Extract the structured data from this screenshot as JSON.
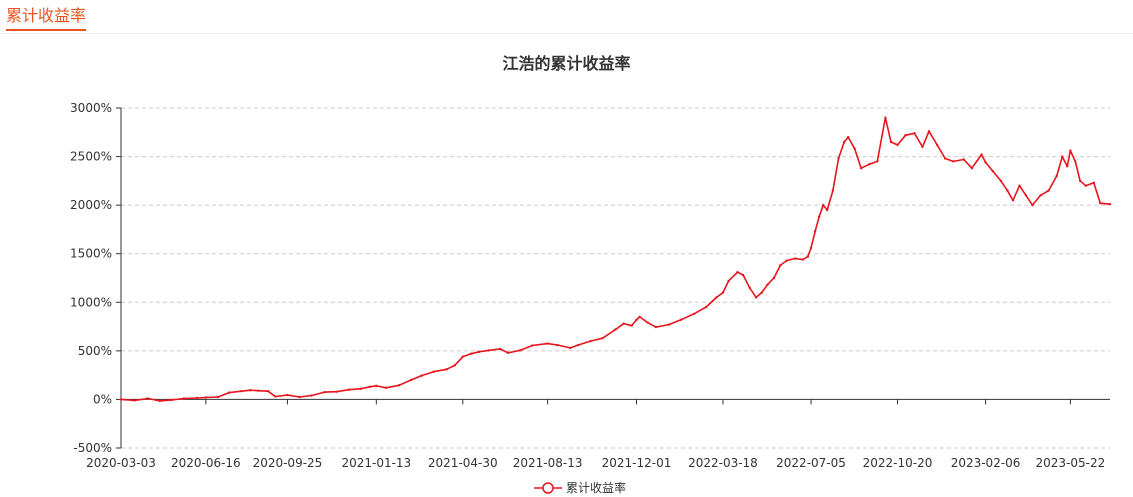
{
  "section": {
    "title": "累计收益率"
  },
  "chart_data": {
    "type": "line",
    "title": "江浩的累计收益率",
    "xlabel": "",
    "ylabel": "",
    "ylim": [
      -500,
      3000
    ],
    "y_ticks": [
      -500,
      0,
      500,
      1000,
      1500,
      2000,
      2500,
      3000
    ],
    "y_tick_labels": [
      "-500%",
      "0%",
      "500%",
      "1000%",
      "1500%",
      "2000%",
      "2500%",
      "3000%"
    ],
    "x_tick_labels": [
      "2020-03-03",
      "2020-06-16",
      "2020-09-25",
      "2021-01-13",
      "2021-04-30",
      "2021-08-13",
      "2021-12-01",
      "2022-03-18",
      "2022-07-05",
      "2022-10-20",
      "2023-02-06",
      "2023-05-22"
    ],
    "x_start": "2020-03-03",
    "x_end": "2023-07-10",
    "grid": true,
    "legend_position": "bottom-center",
    "series": [
      {
        "name": "累计收益率",
        "color": "#e8141e",
        "points": [
          [
            "2020-03-03",
            0
          ],
          [
            "2020-03-20",
            -10
          ],
          [
            "2020-04-05",
            10
          ],
          [
            "2020-04-20",
            -15
          ],
          [
            "2020-05-05",
            -5
          ],
          [
            "2020-05-20",
            10
          ],
          [
            "2020-06-05",
            15
          ],
          [
            "2020-06-16",
            20
          ],
          [
            "2020-07-01",
            25
          ],
          [
            "2020-07-15",
            70
          ],
          [
            "2020-07-30",
            85
          ],
          [
            "2020-08-10",
            95
          ],
          [
            "2020-08-20",
            90
          ],
          [
            "2020-09-01",
            85
          ],
          [
            "2020-09-10",
            30
          ],
          [
            "2020-09-25",
            45
          ],
          [
            "2020-10-10",
            25
          ],
          [
            "2020-10-25",
            40
          ],
          [
            "2020-11-10",
            75
          ],
          [
            "2020-11-25",
            80
          ],
          [
            "2020-12-10",
            100
          ],
          [
            "2020-12-25",
            110
          ],
          [
            "2021-01-05",
            130
          ],
          [
            "2021-01-13",
            140
          ],
          [
            "2021-01-25",
            120
          ],
          [
            "2021-02-10",
            145
          ],
          [
            "2021-02-25",
            200
          ],
          [
            "2021-03-10",
            245
          ],
          [
            "2021-03-25",
            285
          ],
          [
            "2021-04-10",
            310
          ],
          [
            "2021-04-20",
            350
          ],
          [
            "2021-04-30",
            440
          ],
          [
            "2021-05-10",
            470
          ],
          [
            "2021-05-20",
            490
          ],
          [
            "2021-06-01",
            505
          ],
          [
            "2021-06-15",
            520
          ],
          [
            "2021-06-25",
            480
          ],
          [
            "2021-07-10",
            505
          ],
          [
            "2021-07-25",
            555
          ],
          [
            "2021-08-13",
            575
          ],
          [
            "2021-08-25",
            560
          ],
          [
            "2021-09-10",
            530
          ],
          [
            "2021-09-20",
            560
          ],
          [
            "2021-10-05",
            600
          ],
          [
            "2021-10-20",
            630
          ],
          [
            "2021-11-05",
            720
          ],
          [
            "2021-11-15",
            780
          ],
          [
            "2021-11-25",
            760
          ],
          [
            "2021-12-01",
            820
          ],
          [
            "2021-12-05",
            850
          ],
          [
            "2021-12-15",
            790
          ],
          [
            "2021-12-25",
            745
          ],
          [
            "2022-01-10",
            770
          ],
          [
            "2022-01-25",
            820
          ],
          [
            "2022-02-10",
            880
          ],
          [
            "2022-02-25",
            950
          ],
          [
            "2022-03-10",
            1050
          ],
          [
            "2022-03-18",
            1100
          ],
          [
            "2022-03-25",
            1220
          ],
          [
            "2022-04-05",
            1310
          ],
          [
            "2022-04-12",
            1280
          ],
          [
            "2022-04-20",
            1150
          ],
          [
            "2022-04-28",
            1050
          ],
          [
            "2022-05-05",
            1100
          ],
          [
            "2022-05-12",
            1180
          ],
          [
            "2022-05-20",
            1250
          ],
          [
            "2022-05-28",
            1380
          ],
          [
            "2022-06-05",
            1430
          ],
          [
            "2022-06-15",
            1450
          ],
          [
            "2022-06-25",
            1440
          ],
          [
            "2022-07-01",
            1470
          ],
          [
            "2022-07-05",
            1560
          ],
          [
            "2022-07-10",
            1730
          ],
          [
            "2022-07-15",
            1880
          ],
          [
            "2022-07-20",
            2000
          ],
          [
            "2022-07-25",
            1950
          ],
          [
            "2022-08-01",
            2150
          ],
          [
            "2022-08-08",
            2480
          ],
          [
            "2022-08-15",
            2650
          ],
          [
            "2022-08-20",
            2700
          ],
          [
            "2022-08-28",
            2580
          ],
          [
            "2022-09-05",
            2380
          ],
          [
            "2022-09-15",
            2420
          ],
          [
            "2022-09-25",
            2450
          ],
          [
            "2022-10-05",
            2900
          ],
          [
            "2022-10-12",
            2650
          ],
          [
            "2022-10-20",
            2620
          ],
          [
            "2022-10-30",
            2720
          ],
          [
            "2022-11-10",
            2740
          ],
          [
            "2022-11-20",
            2600
          ],
          [
            "2022-11-28",
            2760
          ],
          [
            "2022-12-08",
            2620
          ],
          [
            "2022-12-18",
            2480
          ],
          [
            "2022-12-28",
            2450
          ],
          [
            "2023-01-10",
            2470
          ],
          [
            "2023-01-20",
            2380
          ],
          [
            "2023-02-01",
            2520
          ],
          [
            "2023-02-06",
            2440
          ],
          [
            "2023-02-15",
            2350
          ],
          [
            "2023-02-25",
            2250
          ],
          [
            "2023-03-05",
            2150
          ],
          [
            "2023-03-12",
            2050
          ],
          [
            "2023-03-20",
            2200
          ],
          [
            "2023-03-28",
            2100
          ],
          [
            "2023-04-05",
            2000
          ],
          [
            "2023-04-15",
            2100
          ],
          [
            "2023-04-25",
            2150
          ],
          [
            "2023-05-05",
            2300
          ],
          [
            "2023-05-12",
            2500
          ],
          [
            "2023-05-18",
            2400
          ],
          [
            "2023-05-22",
            2560
          ],
          [
            "2023-05-28",
            2450
          ],
          [
            "2023-06-03",
            2250
          ],
          [
            "2023-06-10",
            2200
          ],
          [
            "2023-06-20",
            2230
          ],
          [
            "2023-06-28",
            2020
          ],
          [
            "2023-07-10",
            2010
          ]
        ]
      }
    ]
  }
}
